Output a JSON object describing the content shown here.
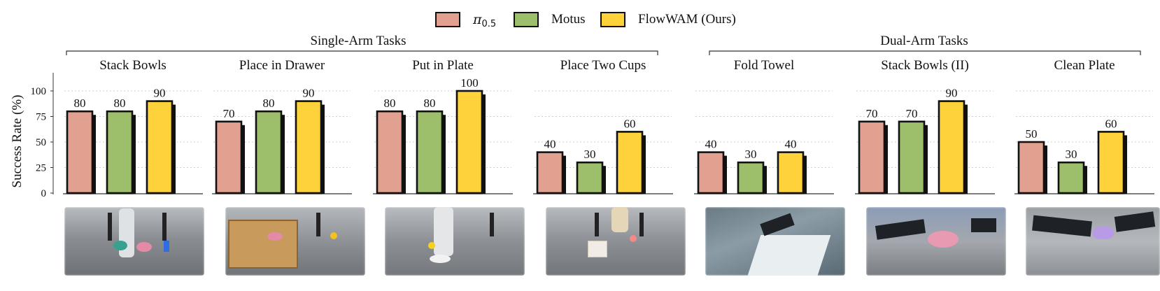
{
  "legend": [
    {
      "symbol": "π",
      "subscript": "0.5",
      "label": "",
      "color": "#e2a090"
    },
    {
      "symbol": "",
      "subscript": "",
      "label": "Motus",
      "color": "#9dbf6b"
    },
    {
      "symbol": "",
      "subscript": "",
      "label": "FlowWAM (Ours)",
      "color": "#fdd23a"
    }
  ],
  "groups": [
    {
      "title": "Single-Arm Tasks"
    },
    {
      "title": "Dual-Arm Tasks"
    }
  ],
  "chart_data": {
    "type": "bar",
    "ylabel": "Success Rate (%)",
    "ylim": [
      0,
      115
    ],
    "yticks": [
      0,
      25,
      50,
      75,
      100
    ],
    "grid": "horizontal dotted",
    "legend_position": "top",
    "series": [
      {
        "name": "π0.5",
        "color": "#e2a090"
      },
      {
        "name": "Motus",
        "color": "#9dbf6b"
      },
      {
        "name": "FlowWAM (Ours)",
        "color": "#fdd23a"
      }
    ],
    "panels": [
      {
        "title": "Stack Bowls",
        "group": "Single-Arm Tasks",
        "values": [
          80,
          80,
          90
        ]
      },
      {
        "title": "Place in Drawer",
        "group": "Single-Arm Tasks",
        "values": [
          70,
          80,
          90
        ]
      },
      {
        "title": "Put in Plate",
        "group": "Single-Arm Tasks",
        "values": [
          80,
          80,
          100
        ]
      },
      {
        "title": "Place Two Cups",
        "group": "Single-Arm Tasks",
        "values": [
          40,
          30,
          60
        ]
      },
      {
        "title": "Fold Towel",
        "group": "Dual-Arm Tasks",
        "values": [
          40,
          30,
          40
        ]
      },
      {
        "title": "Stack Bowls (II)",
        "group": "Dual-Arm Tasks",
        "values": [
          70,
          70,
          90
        ]
      },
      {
        "title": "Clean Plate",
        "group": "Dual-Arm Tasks",
        "values": [
          50,
          30,
          60
        ]
      }
    ]
  }
}
